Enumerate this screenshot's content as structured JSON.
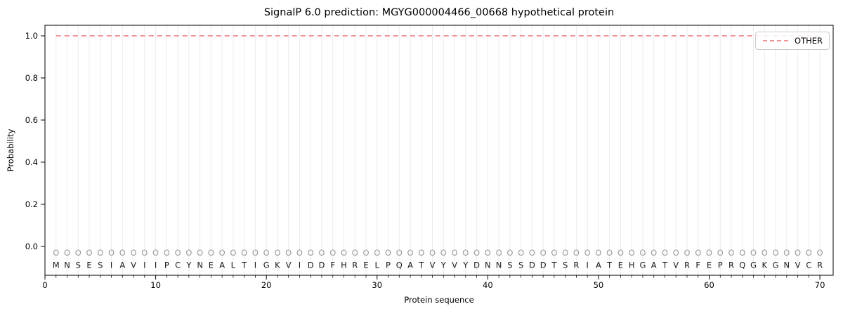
{
  "chart_data": {
    "type": "line",
    "title": "SignalP 6.0 prediction: MGYG000004466_00668 hypothetical protein",
    "xlabel": "Protein sequence",
    "ylabel": "Probability",
    "xlim": [
      0,
      71.2
    ],
    "ylim": [
      -0.137,
      1.05
    ],
    "xticks": [
      0,
      10,
      20,
      30,
      40,
      50,
      60,
      70
    ],
    "ytick_labels": [
      "0.0",
      "0.2",
      "0.4",
      "0.6",
      "0.8",
      "1.0"
    ],
    "grid": "light vertical gridline at every residue position 1-70, minor x tick at every residue",
    "legend_position": "upper right",
    "legend": {
      "entries": [
        {
          "label": "OTHER",
          "style": "dashed",
          "color": "#ef8585"
        }
      ]
    },
    "series": [
      {
        "name": "OTHER",
        "style": "dashed",
        "color": "#ef8585",
        "x": [
          1,
          2,
          3,
          4,
          5,
          6,
          7,
          8,
          9,
          10,
          11,
          12,
          13,
          14,
          15,
          16,
          17,
          18,
          19,
          20,
          21,
          22,
          23,
          24,
          25,
          26,
          27,
          28,
          29,
          30,
          31,
          32,
          33,
          34,
          35,
          36,
          37,
          38,
          39,
          40,
          41,
          42,
          43,
          44,
          45,
          46,
          47,
          48,
          49,
          50,
          51,
          52,
          53,
          54,
          55,
          56,
          57,
          58,
          59,
          60,
          61,
          62,
          63,
          64,
          65,
          66,
          67,
          68,
          69,
          70
        ],
        "values": [
          1.0,
          1.0,
          1.0,
          1.0,
          1.0,
          1.0,
          1.0,
          1.0,
          1.0,
          1.0,
          1.0,
          1.0,
          1.0,
          1.0,
          1.0,
          1.0,
          1.0,
          1.0,
          1.0,
          1.0,
          1.0,
          1.0,
          1.0,
          1.0,
          1.0,
          1.0,
          1.0,
          1.0,
          1.0,
          1.0,
          1.0,
          1.0,
          1.0,
          1.0,
          1.0,
          1.0,
          1.0,
          1.0,
          1.0,
          1.0,
          1.0,
          1.0,
          1.0,
          1.0,
          1.0,
          1.0,
          1.0,
          1.0,
          1.0,
          1.0,
          1.0,
          1.0,
          1.0,
          1.0,
          1.0,
          1.0,
          1.0,
          1.0,
          1.0,
          1.0,
          1.0,
          1.0,
          1.0,
          1.0,
          1.0,
          1.0,
          1.0,
          1.0,
          1.0,
          1.0
        ]
      }
    ],
    "sequence": "MNSESIAVIIPCYNEALTIGKVIDDFHRELPQATVYVYDNNSSDDTSRIATEHGATVRFEPRQGKGNVCR",
    "sequence_length": 70,
    "per_position_label": "O",
    "colors": {
      "marker": "#9a9a9a",
      "sequence_letters": "#1a1a1a",
      "gridline": "#ececec",
      "spine": "#000000",
      "tick_text": "#000000"
    }
  }
}
